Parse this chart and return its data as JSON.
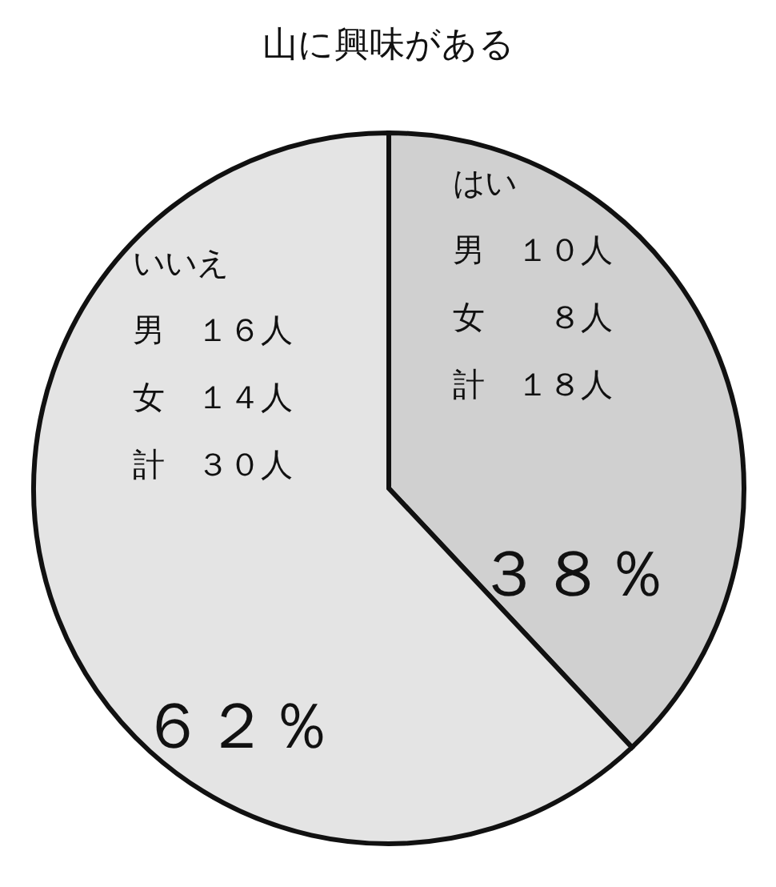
{
  "chart_data": {
    "type": "pie",
    "title": "山に興味がある",
    "categories": [
      "はい",
      "いいえ"
    ],
    "values": [
      38,
      62
    ],
    "colors": [
      "#d0d0d0",
      "#e4e4e4"
    ],
    "value_labels": [
      "３８％",
      "６２％"
    ],
    "annotations": [
      "男　１０人",
      "女　　８人",
      "計　１８人",
      "男　１６人",
      "女　１４人",
      "計　３０人"
    ]
  }
}
